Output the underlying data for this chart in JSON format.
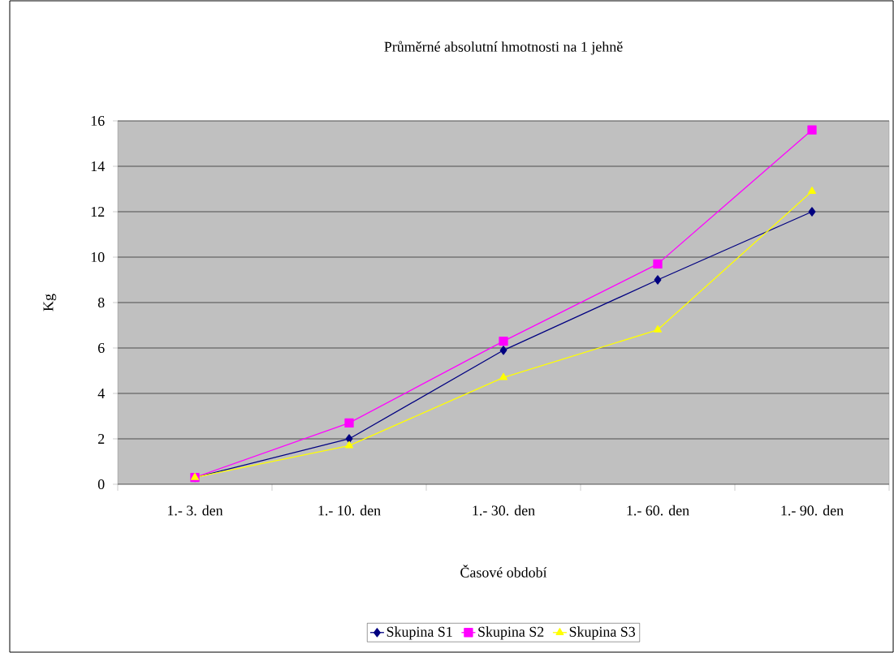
{
  "chart_data": {
    "type": "line",
    "title": "Průměrné absolutní hmotnosti na 1 jehně",
    "xlabel": "Časové období",
    "ylabel": "Kg",
    "categories": [
      "1.- 3. den",
      "1.- 10. den",
      "1.- 30. den",
      "1.- 60. den",
      "1.- 90. den"
    ],
    "series": [
      {
        "name": "Skupina S1",
        "color": "#000080",
        "marker": "diamond",
        "values": [
          0.3,
          2.0,
          5.9,
          9.0,
          12.0
        ]
      },
      {
        "name": "Skupina S2",
        "color": "#ff00ff",
        "marker": "square",
        "values": [
          0.3,
          2.7,
          6.3,
          9.7,
          15.6
        ]
      },
      {
        "name": "Skupina S3",
        "color": "#ffff00",
        "marker": "triangle",
        "values": [
          0.3,
          1.7,
          4.7,
          6.8,
          12.9
        ]
      }
    ],
    "ylim": [
      0,
      16
    ],
    "yticks": [
      0,
      2,
      4,
      6,
      8,
      10,
      12,
      14,
      16
    ],
    "grid": "y",
    "legend": "bottom",
    "line_style": "solid"
  }
}
